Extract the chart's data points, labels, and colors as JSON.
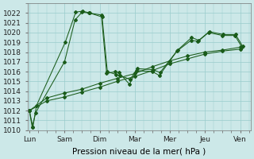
{
  "xlabel": "Pression niveau de la mer( hPa )",
  "ylim": [
    1010,
    1023
  ],
  "yticks": [
    1010,
    1011,
    1012,
    1013,
    1014,
    1015,
    1016,
    1017,
    1018,
    1019,
    1020,
    1021,
    1022
  ],
  "xtick_labels": [
    "Lun",
    "Sam",
    "Dim",
    "Mar",
    "Mer",
    "Jeu",
    "Ven"
  ],
  "background_color": "#cce8e8",
  "grid_color": "#99cccc",
  "line_color": "#1a5c1a",
  "s1_x": [
    0.0,
    0.08,
    0.18,
    1.0,
    1.3,
    1.5,
    1.7,
    2.05,
    2.2,
    2.45,
    2.55,
    2.85,
    3.05,
    3.5,
    3.7,
    4.2,
    4.6,
    4.8,
    5.1,
    5.5,
    5.85,
    6.05
  ],
  "s1_y": [
    1012.0,
    1010.3,
    1011.8,
    1017.0,
    1021.3,
    1022.1,
    1022.0,
    1021.8,
    1015.8,
    1016.0,
    1015.9,
    1014.7,
    1016.1,
    1016.0,
    1015.6,
    1018.1,
    1019.2,
    1019.1,
    1020.0,
    1019.7,
    1019.7,
    1018.5
  ],
  "s2_x": [
    0.0,
    0.1,
    0.2,
    1.02,
    1.32,
    1.52,
    1.72,
    2.07,
    2.22,
    2.47,
    2.57,
    2.87,
    3.07,
    3.52,
    3.72,
    4.22,
    4.62,
    4.82,
    5.12,
    5.52,
    5.87,
    6.07
  ],
  "s2_y": [
    1012.0,
    1010.3,
    1012.5,
    1019.0,
    1022.1,
    1022.2,
    1022.0,
    1021.6,
    1016.0,
    1015.7,
    1015.6,
    1015.2,
    1016.3,
    1016.2,
    1015.9,
    1018.2,
    1019.5,
    1019.2,
    1020.1,
    1019.8,
    1019.8,
    1018.6
  ],
  "s3_x": [
    0.0,
    0.5,
    1.0,
    1.5,
    2.0,
    2.5,
    3.0,
    3.5,
    4.0,
    4.5,
    5.0,
    5.5,
    6.0
  ],
  "s3_y": [
    1012.0,
    1013.0,
    1013.4,
    1013.9,
    1014.4,
    1015.0,
    1015.5,
    1016.1,
    1016.8,
    1017.3,
    1017.8,
    1018.1,
    1018.3
  ],
  "s4_x": [
    0.0,
    0.5,
    1.0,
    1.5,
    2.0,
    2.5,
    3.0,
    3.5,
    4.0,
    4.5,
    5.0,
    5.5,
    6.0
  ],
  "s4_y": [
    1012.0,
    1013.3,
    1013.8,
    1014.2,
    1014.8,
    1015.3,
    1015.8,
    1016.5,
    1017.1,
    1017.6,
    1018.0,
    1018.2,
    1018.5
  ]
}
